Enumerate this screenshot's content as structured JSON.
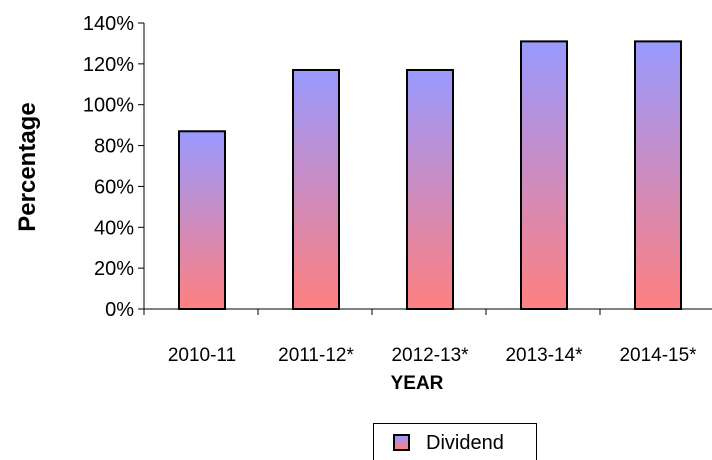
{
  "chart_data": {
    "type": "bar",
    "categories": [
      "2010-11",
      "2011-12*",
      "2012-13*",
      "2013-14*",
      "2014-15*"
    ],
    "series": [
      {
        "name": "Dividend",
        "values": [
          87,
          117,
          117,
          131,
          131
        ]
      }
    ],
    "title": "",
    "xlabel": "YEAR",
    "ylabel": "Percentage",
    "ylim": [
      0,
      140
    ],
    "yticks": [
      "0%",
      "20%",
      "40%",
      "60%",
      "80%",
      "100%",
      "120%",
      "140%"
    ],
    "grid": false,
    "legend_position": "bottom-right",
    "colors": {
      "bar_top": "#9999ff",
      "bar_bottom": "#ff8080",
      "bar_stroke": "#000000"
    }
  },
  "legend": {
    "label": "Dividend"
  }
}
